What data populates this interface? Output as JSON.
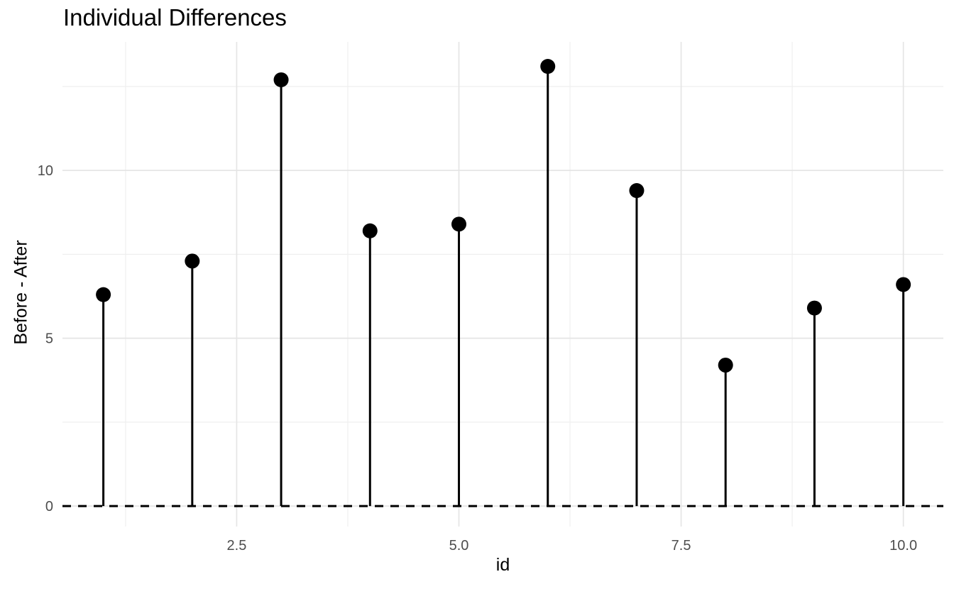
{
  "chart": {
    "title": "Individual Differences",
    "x_axis_title": "id",
    "y_axis_title": "Before - After"
  },
  "chart_data": {
    "type": "lollipop",
    "title": "Individual Differences",
    "xlabel": "id",
    "ylabel": "Before - After",
    "x": [
      1,
      2,
      3,
      4,
      5,
      6,
      7,
      8,
      9,
      10
    ],
    "values": [
      6.3,
      7.3,
      12.7,
      8.2,
      8.4,
      13.1,
      9.4,
      4.2,
      5.9,
      6.6
    ],
    "xlim": [
      0.54,
      10.45
    ],
    "ylim": [
      -0.61,
      13.83
    ],
    "x_major_ticks": [
      2.5,
      5.0,
      7.5,
      10.0
    ],
    "x_tick_labels": [
      "2.5",
      "5.0",
      "7.5",
      "10.0"
    ],
    "y_major_ticks": [
      0,
      5,
      10
    ],
    "y_tick_labels": [
      "0",
      "5",
      "10"
    ],
    "x_minor_ticks": [
      1.25,
      3.75,
      6.25,
      8.75
    ],
    "y_minor_ticks": [
      2.5,
      7.5,
      12.5
    ],
    "reference_line": {
      "y": 0,
      "style": "dashed",
      "color": "#000000"
    },
    "grid": "on",
    "legend": "none",
    "colors": {
      "point": "#000000",
      "stem": "#000000",
      "grid_major": "#e5e5e5",
      "grid_minor": "#efefef",
      "tick_label": "#4d4d4d",
      "text": "#000000",
      "background": "#ffffff"
    }
  }
}
